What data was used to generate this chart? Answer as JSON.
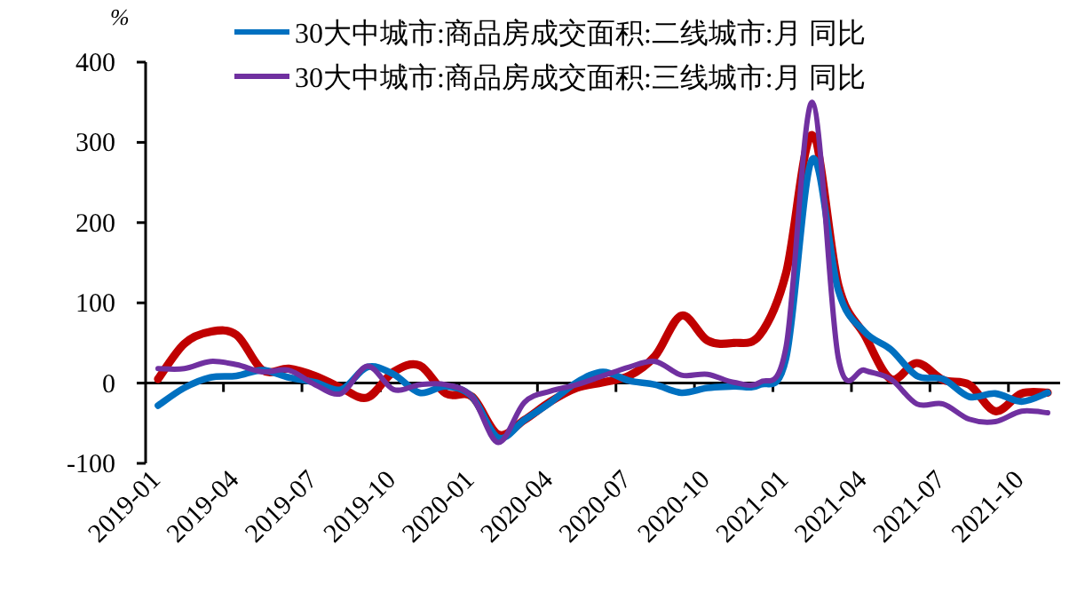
{
  "chart_data": {
    "type": "line",
    "ylabel": "%",
    "categories": [
      "2019-01",
      null,
      null,
      "2019-04",
      null,
      null,
      "2019-07",
      null,
      null,
      "2019-10",
      null,
      null,
      "2020-01",
      null,
      null,
      "2020-04",
      null,
      null,
      "2020-07",
      null,
      null,
      "2020-10",
      null,
      null,
      "2021-01",
      null,
      null,
      "2021-04",
      null,
      null,
      "2021-07",
      null,
      null,
      "2021-10",
      null
    ],
    "series": [
      {
        "color": "#c00000",
        "values": [
          5,
          49,
          64,
          60,
          16,
          18,
          9,
          -6,
          -18,
          14,
          22,
          -13,
          -17,
          -64,
          -46,
          -23,
          -6,
          1,
          9,
          34,
          84,
          53,
          50,
          60,
          137,
          309,
          122,
          60,
          5,
          25,
          4,
          -2,
          -35,
          -13,
          -12
        ]
      },
      {
        "name": "30大中城市:商品房成交面积:二线城市:月 同比",
        "color": "#0070c0",
        "values": [
          -28,
          -6,
          7,
          9,
          16,
          7,
          1,
          -8,
          20,
          11,
          -12,
          -4,
          -17,
          -68,
          -46,
          -24,
          1,
          14,
          3,
          -2,
          -12,
          -6,
          -4,
          -2,
          31,
          279,
          115,
          64,
          42,
          9,
          5,
          -17,
          -13,
          -23,
          -12
        ]
      },
      {
        "name": "30大中城市:商品房成交面积:三线城市:月 同比",
        "color": "#7030a0",
        "values": [
          18,
          18,
          27,
          23,
          14,
          16,
          -2,
          -13,
          21,
          -8,
          -2,
          -2,
          -17,
          -74,
          -24,
          -10,
          -2,
          9,
          20,
          27,
          10,
          11,
          1,
          1,
          45,
          350,
          31,
          16,
          5,
          -26,
          -26,
          -45,
          -48,
          -35,
          -37
        ]
      }
    ],
    "ylim": [
      -100,
      400
    ],
    "yticks": [
      -100,
      0,
      100,
      200,
      300,
      400
    ],
    "legend": "top",
    "line_style": "solid",
    "marker": "none"
  }
}
